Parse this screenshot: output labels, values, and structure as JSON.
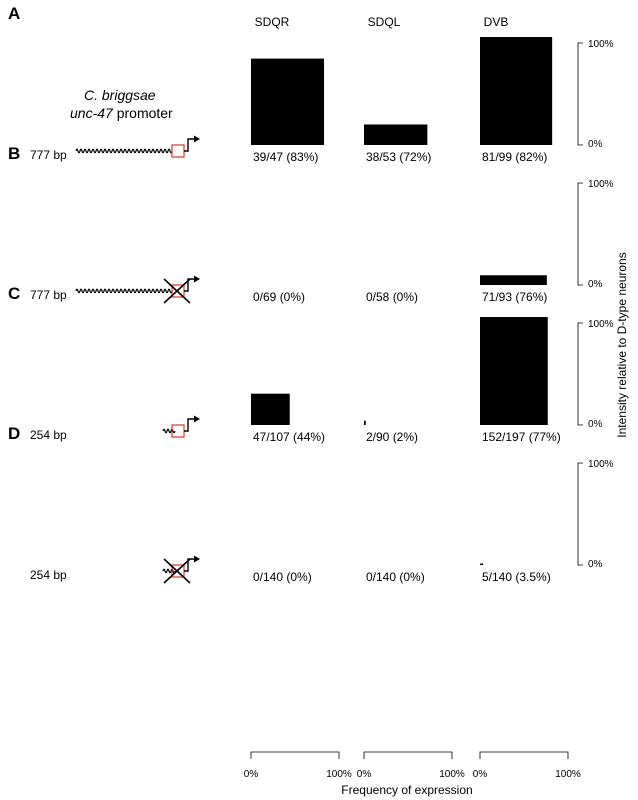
{
  "promoter_title": {
    "species": "C. briggsae",
    "gene": "unc-47",
    "suffix": "promoter"
  },
  "columns": [
    "SDQR",
    "SDQL",
    "DVB"
  ],
  "y_axis": {
    "label": "Intensity relative to D-type neurons",
    "ticks": [
      "100%",
      "0%"
    ]
  },
  "x_axis": {
    "label": "Frequency of expression",
    "ticks": [
      "0%",
      "100%"
    ]
  },
  "chart_data": {
    "type": "bar",
    "ylabel": "Intensity relative to D-type neurons",
    "xlabel": "Frequency of expression",
    "ylim": [
      0,
      100
    ],
    "xlim": [
      0,
      100
    ],
    "panels": [
      {
        "label": "A",
        "length": "777 bp",
        "mutated": false,
        "bars": [
          {
            "neuron": "SDQR",
            "frequency": 83,
            "intensity": 80,
            "text": "39/47 (83%)"
          },
          {
            "neuron": "SDQL",
            "frequency": 72,
            "intensity": 19,
            "text": "38/53 (72%)"
          },
          {
            "neuron": "DVB",
            "frequency": 82,
            "intensity": 100,
            "text": "81/99 (82%)"
          }
        ]
      },
      {
        "label": "B",
        "length": "777 bp",
        "mutated": true,
        "bars": [
          {
            "neuron": "SDQR",
            "frequency": 0,
            "intensity": 0,
            "text": "0/69 (0%)"
          },
          {
            "neuron": "SDQL",
            "frequency": 0,
            "intensity": 0,
            "text": "0/58 (0%)"
          },
          {
            "neuron": "DVB",
            "frequency": 76,
            "intensity": 9,
            "text": "71/93 (76%)"
          }
        ]
      },
      {
        "label": "C",
        "length": "254 bp",
        "mutated": false,
        "bars": [
          {
            "neuron": "SDQR",
            "frequency": 44,
            "intensity": 29,
            "text": "47/107 (44%)"
          },
          {
            "neuron": "SDQL",
            "frequency": 2,
            "intensity": 4,
            "text": "2/90 (2%)"
          },
          {
            "neuron": "DVB",
            "frequency": 77,
            "intensity": 100,
            "text": "152/197 (77%)"
          }
        ]
      },
      {
        "label": "D",
        "length": "254 bp",
        "mutated": true,
        "bars": [
          {
            "neuron": "SDQR",
            "frequency": 0,
            "intensity": 0,
            "text": "0/140 (0%)"
          },
          {
            "neuron": "SDQL",
            "frequency": 0,
            "intensity": 0,
            "text": "0/140 (0%)"
          },
          {
            "neuron": "DVB",
            "frequency": 3.5,
            "intensity": 1,
            "text": "5/140 (3.5%)"
          }
        ]
      }
    ]
  }
}
